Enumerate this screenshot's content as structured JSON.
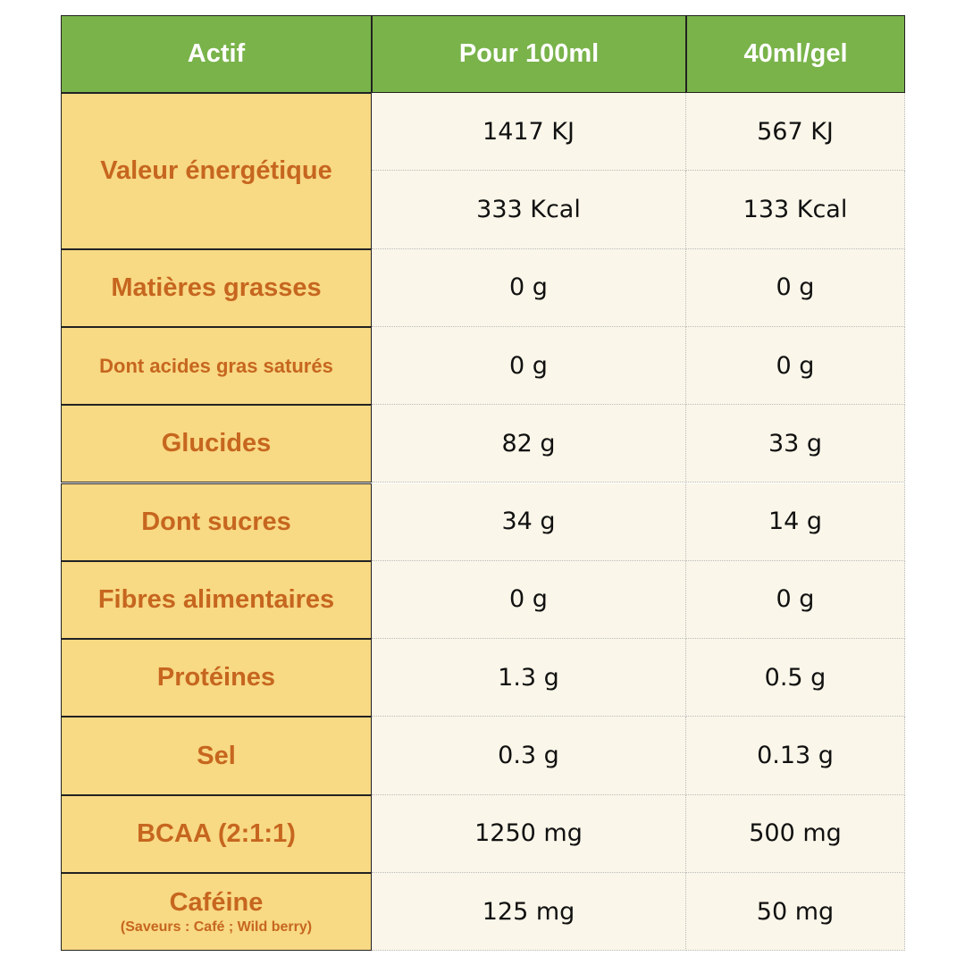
{
  "table": {
    "header": [
      "Actif",
      "Pour 100ml",
      "40ml/gel"
    ],
    "rows": [
      {
        "label": "Valeur énergétique",
        "lines": [
          [
            "1417 KJ",
            "567 KJ"
          ],
          [
            "333 Kcal",
            "133 Kcal"
          ]
        ]
      },
      {
        "label": "Matières grasses",
        "lines": [
          [
            "0 g",
            "0 g"
          ]
        ]
      },
      {
        "label": "Dont acides gras saturés",
        "lines": [
          [
            "0 g",
            "0 g"
          ]
        ]
      },
      {
        "label": "Glucides",
        "lines": [
          [
            "82 g",
            "33 g"
          ]
        ]
      },
      {
        "label": "Dont sucres",
        "lines": [
          [
            "34 g",
            "14 g"
          ]
        ]
      },
      {
        "label": "Fibres alimentaires",
        "lines": [
          [
            "0 g",
            "0 g"
          ]
        ]
      },
      {
        "label": "Protéines",
        "lines": [
          [
            "1.3 g",
            "0.5 g"
          ]
        ]
      },
      {
        "label": "Sel",
        "lines": [
          [
            "0.3 g",
            "0.13 g"
          ]
        ]
      },
      {
        "label": "BCAA (2:1:1)",
        "lines": [
          [
            "1250 mg",
            "500 mg"
          ]
        ]
      },
      {
        "label": "Caféine",
        "note": "(Saveurs : Café ; Wild berry)",
        "lines": [
          [
            "125 mg",
            "50 mg"
          ]
        ]
      }
    ]
  }
}
